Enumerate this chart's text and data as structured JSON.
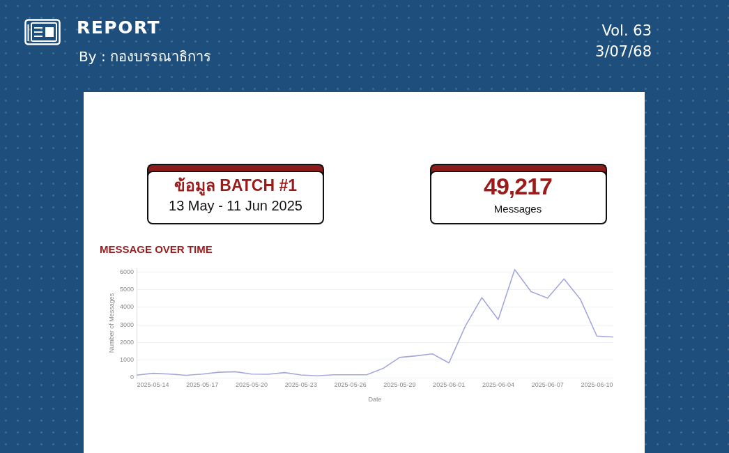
{
  "chart_data": {
    "type": "line",
    "title": "MESSAGE OVER TIME",
    "xlabel": "Date",
    "ylabel": "Number of Messages",
    "annotations": [
      "REPORT",
      "By : กองบรรณาธิการ",
      "Vol. 63",
      "3/07/68",
      "ข้อมูล BATCH #1",
      "13 May - 11 Jun 2025",
      "49,217",
      "Messages"
    ],
    "x": [
      "2025-05-13",
      "2025-05-14",
      "2025-05-15",
      "2025-05-16",
      "2025-05-17",
      "2025-05-18",
      "2025-05-19",
      "2025-05-20",
      "2025-05-21",
      "2025-05-22",
      "2025-05-23",
      "2025-05-24",
      "2025-05-25",
      "2025-05-26",
      "2025-05-27",
      "2025-05-28",
      "2025-05-29",
      "2025-05-30",
      "2025-05-31",
      "2025-06-01",
      "2025-06-02",
      "2025-06-03",
      "2025-06-04",
      "2025-06-05",
      "2025-06-06",
      "2025-06-07",
      "2025-06-08",
      "2025-06-09",
      "2025-06-10",
      "2025-06-11"
    ],
    "series": [
      {
        "color": "#a5a8dc",
        "values": [
          150,
          250,
          210,
          140,
          210,
          310,
          340,
          210,
          200,
          290,
          160,
          110,
          170,
          170,
          170,
          530,
          1150,
          1240,
          1350,
          840,
          2930,
          4540,
          3300,
          6130,
          4880,
          4510,
          5600,
          4440,
          2360,
          2310
        ]
      }
    ],
    "xlim": [
      "2025-05-13",
      "2025-06-11"
    ],
    "xticks": [
      "2025-05-14",
      "2025-05-17",
      "2025-05-20",
      "2025-05-23",
      "2025-05-26",
      "2025-05-29",
      "2025-06-01",
      "2025-06-04",
      "2025-06-07",
      "2025-06-10"
    ],
    "ylim": [
      0,
      6200
    ],
    "yticks": [
      0,
      1000,
      2000,
      3000,
      4000,
      5000,
      6000
    ],
    "grid": "y",
    "marker": "none",
    "line_style": "solid"
  }
}
